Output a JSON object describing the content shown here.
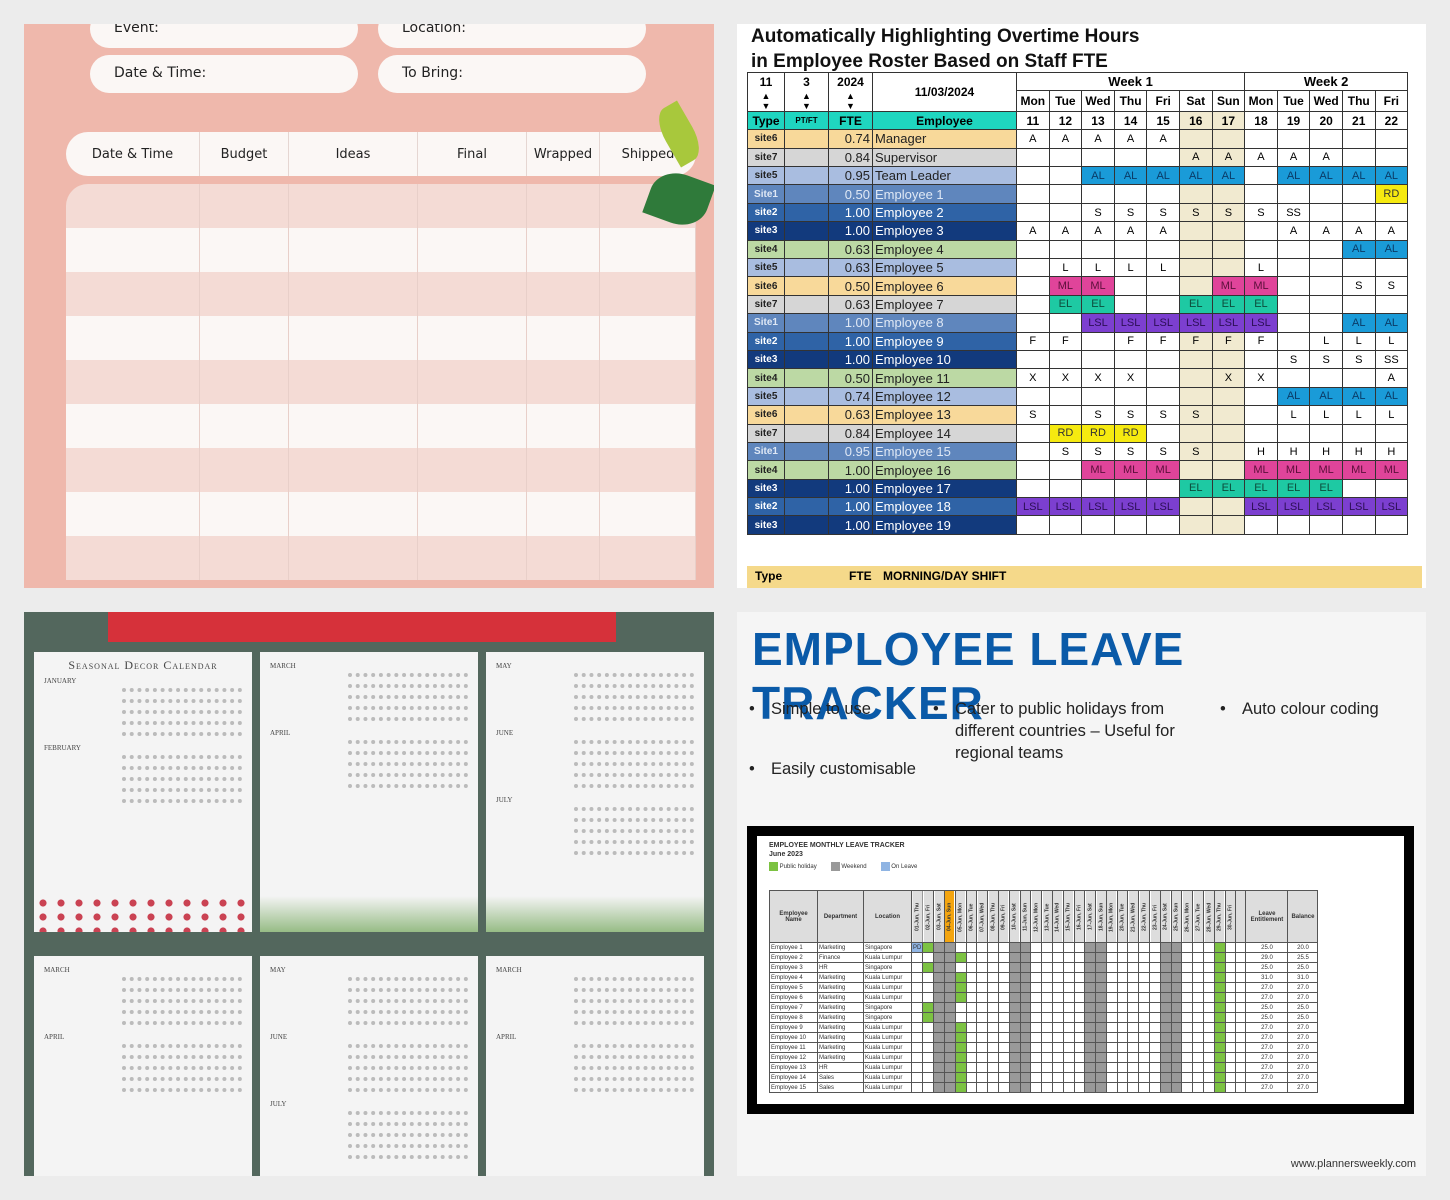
{
  "panel1": {
    "fields": [
      "Event:",
      "Location:",
      "Date & Time:",
      "To Bring:"
    ],
    "columns": [
      "Date & Time",
      "Budget",
      "Ideas",
      "Final",
      "Wrapped",
      "Shipped"
    ],
    "row_count": 9,
    "colors": {
      "background": "#efb8ac",
      "pill": "#fbf7f5"
    }
  },
  "panel2": {
    "title_line1": "Automatically Highlighting Overtime Hours",
    "title_line2": "in Employee Roster Based on Staff FTE",
    "spinners": {
      "day": "11",
      "month": "3",
      "year": "2024"
    },
    "date": "11/03/2024",
    "weeks": [
      "Week 1",
      "Week 2"
    ],
    "days": [
      "Mon",
      "Tue",
      "Wed",
      "Thu",
      "Fri",
      "Sat",
      "Sun",
      "Mon",
      "Tue",
      "Wed",
      "Thu",
      "Fri"
    ],
    "dates": [
      "11",
      "12",
      "13",
      "14",
      "15",
      "16",
      "17",
      "18",
      "19",
      "20",
      "21",
      "22"
    ],
    "headers": {
      "type": "Type",
      "ptft": "PT/FT",
      "fte": "FTE",
      "employee": "Employee"
    },
    "rows": [
      {
        "type": "site6",
        "fte": "0.74",
        "name": "Manager",
        "bg": "#f8d99a",
        "fg": "#222",
        "cells": [
          "A",
          "A",
          "A",
          "A",
          "A",
          "",
          "",
          "",
          "",
          "",
          "",
          ""
        ]
      },
      {
        "type": "site7",
        "fte": "0.84",
        "name": "Supervisor",
        "bg": "#d6d6d6",
        "fg": "#222",
        "cells": [
          "",
          "",
          "",
          "",
          "",
          "A",
          "A",
          "A",
          "A",
          "A",
          "",
          ""
        ]
      },
      {
        "type": "site5",
        "fte": "0.95",
        "name": "Team Leader",
        "bg": "#a9bde0",
        "fg": "#222",
        "cells": [
          "",
          "",
          "AL",
          "AL",
          "AL",
          "AL",
          "AL",
          "",
          "AL",
          "AL",
          "AL",
          "AL"
        ]
      },
      {
        "type": "Site1",
        "fte": "0.50",
        "name": "Employee 1",
        "bg": "#5f86bd",
        "fg": "#dfe8f5",
        "cells": [
          "",
          "",
          "",
          "",
          "",
          "",
          "",
          "",
          "",
          "",
          "",
          "RD"
        ]
      },
      {
        "type": "site2",
        "fte": "1.00",
        "name": "Employee 2",
        "bg": "#2f63a6",
        "fg": "#fff",
        "cells": [
          "",
          "",
          "S",
          "S",
          "S",
          "S",
          "S",
          "S",
          "SS",
          "",
          "",
          ""
        ]
      },
      {
        "type": "site3",
        "fte": "1.00",
        "name": "Employee 3",
        "bg": "#123a7d",
        "fg": "#fff",
        "cells": [
          "A",
          "A",
          "A",
          "A",
          "A",
          "",
          "",
          "",
          "A",
          "A",
          "A",
          "A"
        ]
      },
      {
        "type": "site4",
        "fte": "0.63",
        "name": "Employee 4",
        "bg": "#bcd9a4",
        "fg": "#222",
        "cells": [
          "",
          "",
          "",
          "",
          "",
          "",
          "",
          "",
          "",
          "",
          "AL",
          "AL"
        ]
      },
      {
        "type": "site5",
        "fte": "0.63",
        "name": "Employee 5",
        "bg": "#a9bde0",
        "fg": "#222",
        "cells": [
          "",
          "L",
          "L",
          "L",
          "L",
          "",
          "",
          "L",
          "",
          "",
          "",
          ""
        ]
      },
      {
        "type": "site6",
        "fte": "0.50",
        "name": "Employee 6",
        "bg": "#f8d99a",
        "fg": "#222",
        "cells": [
          "",
          "ML",
          "ML",
          "",
          "",
          "",
          "ML",
          "ML",
          "",
          "",
          "S",
          "S"
        ]
      },
      {
        "type": "site7",
        "fte": "0.63",
        "name": "Employee 7",
        "bg": "#d6d6d6",
        "fg": "#222",
        "cells": [
          "",
          "EL",
          "EL",
          "",
          "",
          "EL",
          "EL",
          "EL",
          "",
          "",
          "",
          ""
        ]
      },
      {
        "type": "Site1",
        "fte": "1.00",
        "name": "Employee 8",
        "bg": "#5f86bd",
        "fg": "#dfe8f5",
        "cells": [
          "",
          "",
          "LSL",
          "LSL",
          "LSL",
          "LSL",
          "LSL",
          "LSL",
          "",
          "",
          "AL",
          "AL"
        ]
      },
      {
        "type": "site2",
        "fte": "1.00",
        "name": "Employee 9",
        "bg": "#2f63a6",
        "fg": "#fff",
        "cells": [
          "F",
          "F",
          "",
          "F",
          "F",
          "F",
          "F",
          "F",
          "",
          "L",
          "L",
          "L"
        ]
      },
      {
        "type": "site3",
        "fte": "1.00",
        "name": "Employee 10",
        "bg": "#123a7d",
        "fg": "#fff",
        "cells": [
          "",
          "",
          "",
          "",
          "",
          "",
          "",
          "",
          "S",
          "S",
          "S",
          "SS"
        ]
      },
      {
        "type": "site4",
        "fte": "0.50",
        "name": "Employee 11",
        "bg": "#bcd9a4",
        "fg": "#222",
        "cells": [
          "X",
          "X",
          "X",
          "X",
          "",
          "",
          "X",
          "X",
          "",
          "",
          "",
          "A"
        ]
      },
      {
        "type": "site5",
        "fte": "0.74",
        "name": "Employee 12",
        "bg": "#a9bde0",
        "fg": "#222",
        "cells": [
          "",
          "",
          "",
          "",
          "",
          "",
          "",
          "",
          "AL",
          "AL",
          "AL",
          "AL"
        ]
      },
      {
        "type": "site6",
        "fte": "0.63",
        "name": "Employee 13",
        "bg": "#f8d99a",
        "fg": "#222",
        "cells": [
          "S",
          "",
          "S",
          "S",
          "S",
          "S",
          "",
          "",
          "L",
          "L",
          "L",
          "L"
        ]
      },
      {
        "type": "site7",
        "fte": "0.84",
        "name": "Employee 14",
        "bg": "#d6d6d6",
        "fg": "#222",
        "cells": [
          "",
          "RD",
          "RD",
          "RD",
          "",
          "",
          "",
          "",
          "",
          "",
          "",
          ""
        ]
      },
      {
        "type": "Site1",
        "fte": "0.95",
        "name": "Employee 15",
        "bg": "#5f86bd",
        "fg": "#dfe8f5",
        "cells": [
          "",
          "S",
          "S",
          "S",
          "S",
          "S",
          "",
          "H",
          "H",
          "H",
          "H",
          "H"
        ]
      },
      {
        "type": "site4",
        "fte": "1.00",
        "name": "Employee 16",
        "bg": "#bcd9a4",
        "fg": "#222",
        "cells": [
          "",
          "",
          "ML",
          "ML",
          "ML",
          "",
          "",
          "ML",
          "ML",
          "ML",
          "ML",
          "ML"
        ]
      },
      {
        "type": "site3",
        "fte": "1.00",
        "name": "Employee 17",
        "bg": "#123a7d",
        "fg": "#fff",
        "cells": [
          "",
          "",
          "",
          "",
          "",
          "EL",
          "EL",
          "EL",
          "EL",
          "EL",
          "",
          ""
        ]
      },
      {
        "type": "site2",
        "fte": "1.00",
        "name": "Employee 18",
        "bg": "#2f63a6",
        "fg": "#fff",
        "cells": [
          "LSL",
          "LSL",
          "LSL",
          "LSL",
          "LSL",
          "",
          "",
          "LSL",
          "LSL",
          "LSL",
          "LSL",
          "LSL"
        ]
      },
      {
        "type": "site3",
        "fte": "1.00",
        "name": "Employee 19",
        "bg": "#123a7d",
        "fg": "#fff",
        "cells": [
          "",
          "",
          "",
          "",
          "",
          "",
          "",
          "",
          "",
          "",
          "",
          ""
        ]
      }
    ],
    "footer": {
      "type": "Type",
      "fte": "FTE",
      "shift": "MORNING/DAY SHIFT"
    }
  },
  "panel3": {
    "pages": [
      {
        "title": "Seasonal Decor Calendar",
        "months": [
          "January",
          "February"
        ]
      },
      {
        "title": "",
        "months": [
          "March",
          "April"
        ]
      },
      {
        "title": "",
        "months": [
          "May",
          "June",
          "July"
        ]
      },
      {
        "title": "",
        "months": [
          "March",
          "April"
        ]
      },
      {
        "title": "",
        "months": [
          "May",
          "June",
          "July"
        ]
      },
      {
        "title": "",
        "months": [
          "March",
          "April"
        ]
      }
    ]
  },
  "panel4": {
    "title": "EMPLOYEE LEAVE TRACKER",
    "bullets": [
      "Simple to use",
      "Cater to public holidays from different countries – Useful for regional teams",
      "Auto colour coding",
      "Easily customisable"
    ],
    "sheet_title": "EMPLOYEE MONTHLY LEAVE TRACKER",
    "month": "June 2023",
    "legend": [
      "Public holiday",
      "Weekend",
      "On Leave"
    ],
    "col_headers": {
      "name": "Employee Name",
      "dept": "Department",
      "loc": "Location",
      "ent": "Leave Entitlement",
      "bal": "Balance"
    },
    "employees": [
      {
        "name": "Employee 1",
        "dept": "Marketing",
        "loc": "Singapore",
        "ent": "25.0",
        "bal": "20.0"
      },
      {
        "name": "Employee 2",
        "dept": "Finance",
        "loc": "Kuala Lumpur",
        "ent": "29.0",
        "bal": "25.5"
      },
      {
        "name": "Employee 3",
        "dept": "HR",
        "loc": "Singapore",
        "ent": "25.0",
        "bal": "25.0"
      },
      {
        "name": "Employee 4",
        "dept": "Marketing",
        "loc": "Kuala Lumpur",
        "ent": "31.0",
        "bal": "31.0"
      },
      {
        "name": "Employee 5",
        "dept": "Marketing",
        "loc": "Kuala Lumpur",
        "ent": "27.0",
        "bal": "27.0"
      },
      {
        "name": "Employee 6",
        "dept": "Marketing",
        "loc": "Kuala Lumpur",
        "ent": "27.0",
        "bal": "27.0"
      },
      {
        "name": "Employee 7",
        "dept": "Marketing",
        "loc": "Singapore",
        "ent": "25.0",
        "bal": "25.0"
      },
      {
        "name": "Employee 8",
        "dept": "Marketing",
        "loc": "Singapore",
        "ent": "25.0",
        "bal": "25.0"
      },
      {
        "name": "Employee 9",
        "dept": "Marketing",
        "loc": "Kuala Lumpur",
        "ent": "27.0",
        "bal": "27.0"
      },
      {
        "name": "Employee 10",
        "dept": "Marketing",
        "loc": "Kuala Lumpur",
        "ent": "27.0",
        "bal": "27.0"
      },
      {
        "name": "Employee 11",
        "dept": "Marketing",
        "loc": "Kuala Lumpur",
        "ent": "27.0",
        "bal": "27.0"
      },
      {
        "name": "Employee 12",
        "dept": "Marketing",
        "loc": "Kuala Lumpur",
        "ent": "27.0",
        "bal": "27.0"
      },
      {
        "name": "Employee 13",
        "dept": "HR",
        "loc": "Kuala Lumpur",
        "ent": "27.0",
        "bal": "27.0"
      },
      {
        "name": "Employee 14",
        "dept": "Sales",
        "loc": "Kuala Lumpur",
        "ent": "27.0",
        "bal": "27.0"
      },
      {
        "name": "Employee 15",
        "dept": "Sales",
        "loc": "Kuala Lumpur",
        "ent": "27.0",
        "bal": "27.0"
      }
    ],
    "days": [
      "01-Jun, Thu",
      "02-Jun, Fri",
      "03-Jun, Sat",
      "04-Jun, Sun",
      "05-Jun, Mon",
      "06-Jun, Tue",
      "07-Jun, Wed",
      "08-Jun, Thu",
      "09-Jun, Fri",
      "10-Jun, Sat",
      "11-Jun, Sun",
      "12-Jun, Mon",
      "13-Jun, Tue",
      "14-Jun, Wed",
      "15-Jun, Thu",
      "16-Jun, Fri",
      "17-Jun, Sat",
      "18-Jun, Sun",
      "19-Jun, Mon",
      "20-Jun, Tue",
      "21-Jun, Wed",
      "22-Jun, Thu",
      "23-Jun, Fri",
      "24-Jun, Sat",
      "25-Jun, Sun",
      "26-Jun, Mon",
      "27-Jun, Tue",
      "28-Jun, Wed",
      "29-Jun, Thu",
      "30-Jun, Fri"
    ],
    "first_cell": "PD",
    "footer": "www.plannersweekly.com"
  }
}
